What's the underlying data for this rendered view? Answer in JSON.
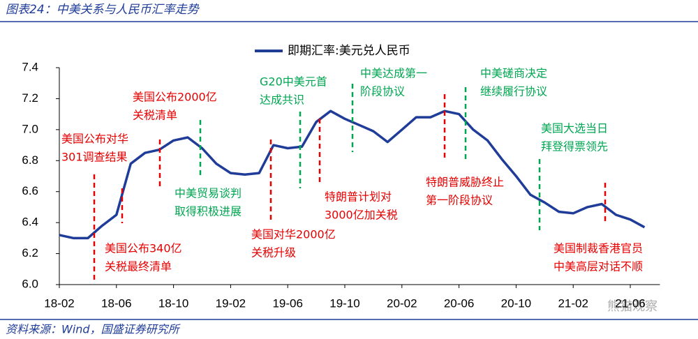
{
  "chart_data": {
    "type": "line",
    "title": "图表24：中美关系与人民币汇率走势",
    "source": "资料来源：Wind，国盛证券研究所",
    "watermark": "熊猫观察",
    "categories": [
      "18-02",
      null,
      null,
      null,
      "18-06",
      null,
      null,
      null,
      "18-10",
      null,
      null,
      null,
      "19-02",
      null,
      null,
      null,
      "19-06",
      null,
      null,
      null,
      "19-10",
      null,
      null,
      null,
      "20-02",
      null,
      null,
      null,
      "20-06",
      null,
      null,
      null,
      "20-10",
      null,
      null,
      null,
      "21-02",
      null,
      null,
      null,
      "21-06",
      null
    ],
    "series": [
      {
        "name": "即期汇率:美元兑人民币",
        "color": "#1f3c99",
        "values": [
          6.32,
          6.3,
          6.3,
          6.38,
          6.45,
          6.78,
          6.85,
          6.87,
          6.93,
          6.95,
          6.88,
          6.78,
          6.72,
          6.71,
          6.72,
          6.9,
          6.88,
          6.89,
          7.05,
          7.12,
          7.07,
          7.03,
          6.99,
          6.92,
          7.0,
          7.08,
          7.08,
          7.12,
          7.1,
          7.0,
          6.93,
          6.81,
          6.7,
          6.58,
          6.53,
          6.47,
          6.46,
          6.5,
          6.52,
          6.45,
          6.42,
          6.37
        ]
      }
    ],
    "ylim": [
      6.0,
      7.4
    ],
    "yticks": [
      {
        "value": 6.0,
        "label": "6.0"
      },
      6.2,
      6.4,
      6.6,
      6.8,
      {
        "value": 7.0,
        "label": "7.0"
      },
      7.2,
      7.4
    ],
    "annotations": [
      {
        "lines": [
          "美国公布对华",
          "301调查结果"
        ],
        "color": "#e60000"
      },
      {
        "lines": [
          "美国公布340亿",
          "关税最终清单"
        ],
        "color": "#e60000"
      },
      {
        "lines": [
          "美国公布2000亿",
          "关税清单"
        ],
        "color": "#e60000"
      },
      {
        "lines": [
          "中美贸易谈判",
          "取得积极进展"
        ],
        "color": "#00a651"
      },
      {
        "lines": [
          "美国对华2000亿",
          "关税升级"
        ],
        "color": "#e60000"
      },
      {
        "lines": [
          "G20中美元首",
          "达成共识"
        ],
        "color": "#00a651"
      },
      {
        "lines": [
          "特朗普计划对",
          "3000亿加关税"
        ],
        "color": "#e60000"
      },
      {
        "lines": [
          "中美达成第一",
          "阶段协议"
        ],
        "color": "#00a651"
      },
      {
        "lines": [
          "特朗普威胁终止",
          "第一阶段协议"
        ],
        "color": "#e60000"
      },
      {
        "lines": [
          "中美磋商决定",
          "继续履行协议"
        ],
        "color": "#00a651"
      },
      {
        "lines": [
          "美国大选当日",
          "拜登得票领先"
        ],
        "color": "#00a651"
      },
      {
        "lines": [
          "美国制裁香港官员",
          "中美高层对话不顺"
        ],
        "color": "#e60000"
      }
    ]
  }
}
